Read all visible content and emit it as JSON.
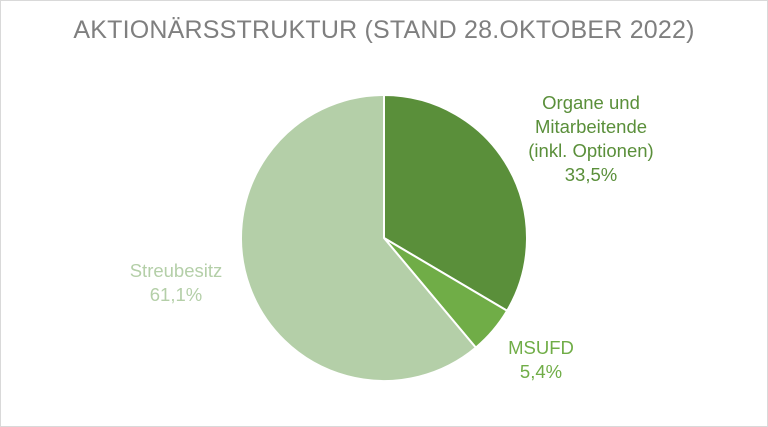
{
  "chart_data": {
    "type": "pie",
    "title": "AKTIONÄRSSTRUKTUR (STAND 28.OKTOBER 2022)",
    "start_angle_deg": 0,
    "direction": "clockwise",
    "slices": [
      {
        "name_lines": [
          "Organe und",
          "Mitarbeitende",
          "(inkl. Optionen)"
        ],
        "value": 33.5,
        "value_label": "33,5%",
        "color": "#5a8f3a",
        "label_color": "#5a8f3a"
      },
      {
        "name_lines": [
          "MSUFD"
        ],
        "value": 5.4,
        "value_label": "5,4%",
        "color": "#70ad47",
        "label_color": "#70ad47"
      },
      {
        "name_lines": [
          "Streubesitz"
        ],
        "value": 61.1,
        "value_label": "61,1%",
        "color": "#b4cfa8",
        "label_color": "#b4cfa8"
      }
    ],
    "slice_border_color": "#ffffff"
  }
}
